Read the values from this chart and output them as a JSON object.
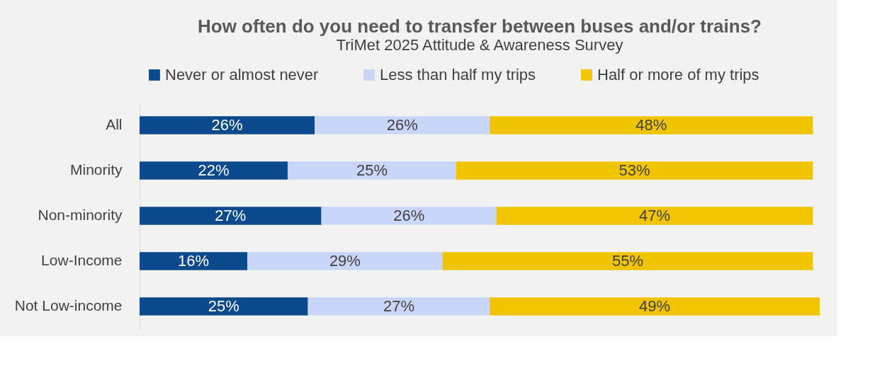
{
  "chart_data": {
    "type": "bar",
    "orientation": "horizontal",
    "stacked": true,
    "title": "How often do you need to transfer between buses and/or trains?",
    "subtitle": "TriMet 2025 Attitude & Awareness Survey",
    "categories": [
      "All",
      "Minority",
      "Non-minority",
      "Low-Income",
      "Not Low-income"
    ],
    "legend": "top",
    "grid": false,
    "series": [
      {
        "name": "Never or almost never",
        "color": "#0a4a8c",
        "values": [
          26,
          22,
          27,
          16,
          25
        ],
        "value_labels": [
          "26%",
          "22%",
          "27%",
          "16%",
          "25%"
        ]
      },
      {
        "name": "Less than half my trips",
        "color": "#c9d6f8",
        "values": [
          26,
          25,
          26,
          29,
          27
        ],
        "value_labels": [
          "26%",
          "25%",
          "26%",
          "29%",
          "27%"
        ]
      },
      {
        "name": "Half or more of my trips",
        "color": "#f0c400",
        "values": [
          48,
          53,
          47,
          55,
          49
        ],
        "value_labels": [
          "48%",
          "53%",
          "47%",
          "55%",
          "49%"
        ]
      }
    ]
  }
}
